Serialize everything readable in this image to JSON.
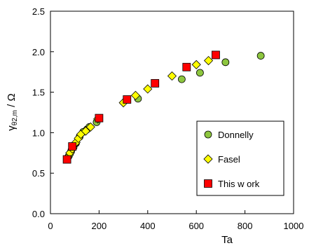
{
  "chart_data": {
    "type": "scatter",
    "xlabel": "Ta",
    "ylabel_main": "γ",
    "ylabel_sub": "θ2,m",
    "ylabel_tail": " / Ω",
    "xlim": [
      0,
      1000
    ],
    "ylim": [
      0.0,
      2.5
    ],
    "xticks": [
      0,
      200,
      400,
      600,
      800,
      1000
    ],
    "yticks": [
      "0.0",
      "0.5",
      "1.0",
      "1.5",
      "2.0",
      "2.5"
    ],
    "grid": false,
    "legend_position": "bottom-right",
    "series": [
      {
        "name": "Donnelly",
        "marker": "circle",
        "color": "#8dc63f",
        "points": [
          [
            70,
            0.68
          ],
          [
            75,
            0.71
          ],
          [
            80,
            0.74
          ],
          [
            85,
            0.77
          ],
          [
            95,
            0.82
          ],
          [
            105,
            0.87
          ],
          [
            120,
            0.95
          ],
          [
            135,
            1.01
          ],
          [
            150,
            1.04
          ],
          [
            160,
            1.07
          ],
          [
            190,
            1.13
          ],
          [
            360,
            1.42
          ],
          [
            540,
            1.66
          ],
          [
            615,
            1.74
          ],
          [
            720,
            1.87
          ],
          [
            865,
            1.95
          ]
        ]
      },
      {
        "name": "Fasel",
        "marker": "diamond",
        "color": "#ffff00",
        "points": [
          [
            72,
            0.7
          ],
          [
            80,
            0.75
          ],
          [
            90,
            0.8
          ],
          [
            98,
            0.85
          ],
          [
            105,
            0.88
          ],
          [
            115,
            0.93
          ],
          [
            125,
            0.98
          ],
          [
            145,
            1.02
          ],
          [
            165,
            1.07
          ],
          [
            195,
            1.17
          ],
          [
            300,
            1.37
          ],
          [
            350,
            1.46
          ],
          [
            400,
            1.54
          ],
          [
            500,
            1.7
          ],
          [
            600,
            1.84
          ],
          [
            650,
            1.89
          ]
        ]
      },
      {
        "name": "This w ork",
        "marker": "square",
        "color": "#ff0000",
        "points": [
          [
            68,
            0.67
          ],
          [
            90,
            0.83
          ],
          [
            200,
            1.18
          ],
          [
            315,
            1.41
          ],
          [
            430,
            1.61
          ],
          [
            560,
            1.81
          ],
          [
            680,
            1.96
          ]
        ]
      }
    ]
  }
}
